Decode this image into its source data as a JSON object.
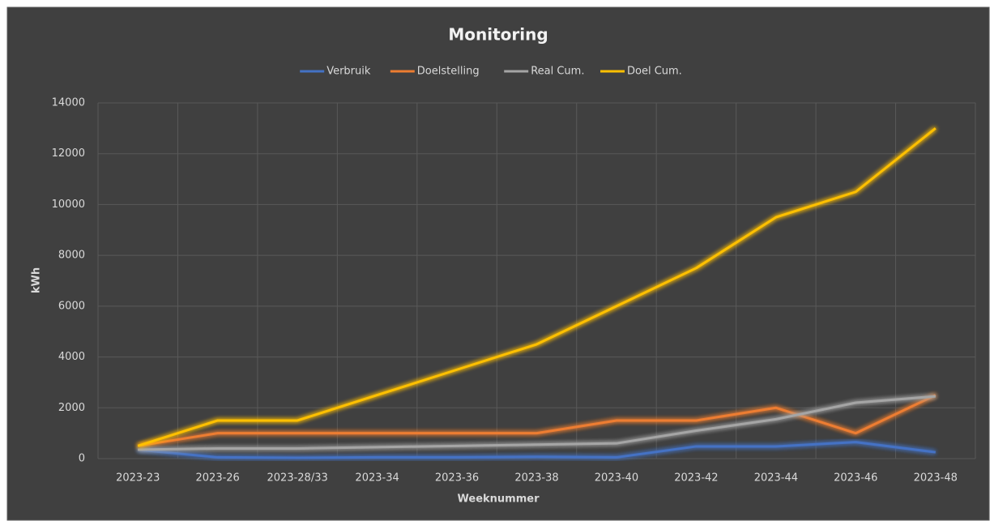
{
  "chart_data": {
    "type": "line",
    "title": "Monitoring",
    "x_label": "Weeknummer",
    "y_label": "kWh",
    "categories": [
      "2023-23",
      "2023-26",
      "2023-28/33",
      "2023-34",
      "2023-36",
      "2023-38",
      "2023-40",
      "2023-42",
      "2023-44",
      "2023-46",
      "2023-48"
    ],
    "series": [
      {
        "name": "Verbruik",
        "color": "#4472c4",
        "values": [
          350,
          50,
          30,
          50,
          50,
          70,
          50,
          480,
          480,
          650,
          250
        ]
      },
      {
        "name": "Doelstelling",
        "color": "#ed7d31",
        "values": [
          500,
          1000,
          1000,
          1000,
          1000,
          1000,
          1500,
          1500,
          2000,
          1000,
          2500
        ]
      },
      {
        "name": "Real Cum.",
        "color": "#a5a5a5",
        "values": [
          350,
          400,
          400,
          450,
          500,
          550,
          600,
          1100,
          1550,
          2200,
          2450
        ]
      },
      {
        "name": "Doel Cum.",
        "color": "#ffc000",
        "values": [
          500,
          1500,
          1500,
          2500,
          3500,
          4500,
          6000,
          7500,
          9500,
          10500,
          13000
        ]
      }
    ],
    "ylim": [
      0,
      14000
    ],
    "yticks": [
      0,
      2000,
      4000,
      6000,
      8000,
      10000,
      12000,
      14000
    ],
    "grid": true,
    "legend": "top"
  }
}
